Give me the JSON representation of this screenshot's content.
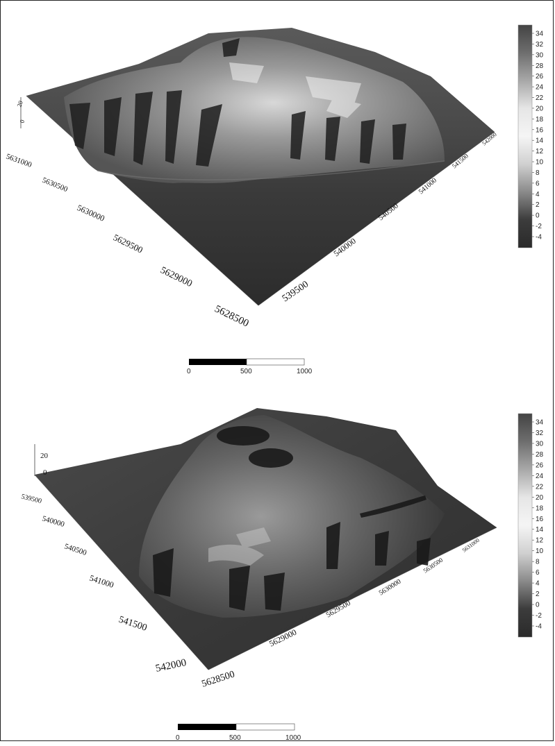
{
  "colorbar": {
    "ticks": [
      "34",
      "32",
      "30",
      "28",
      "26",
      "24",
      "22",
      "20",
      "18",
      "16",
      "14",
      "12",
      "10",
      "8",
      "6",
      "4",
      "2",
      "0",
      "-2",
      "-4"
    ],
    "gradient": [
      "#444444",
      "#6e6e6e",
      "#a8a8a8",
      "#e6e6e6",
      "#f5f5f5",
      "#d0d0d0",
      "#8a8a8a",
      "#3c3c3c",
      "#2a2a2a"
    ]
  },
  "top": {
    "z_ticks": [
      "20",
      "0"
    ],
    "left_axis": [
      "5631000",
      "5630500",
      "5630000",
      "5629500",
      "5629000",
      "5628500"
    ],
    "right_axis": [
      "539500",
      "540000",
      "540500",
      "541000",
      "541500",
      "542000"
    ],
    "scalebar": [
      "0",
      "500",
      "1000"
    ]
  },
  "bottom": {
    "z_ticks": [
      "20",
      "0"
    ],
    "left_axis": [
      "539500",
      "540000",
      "540500",
      "541000",
      "541500",
      "542000"
    ],
    "right_axis": [
      "5628500",
      "5629000",
      "5629500",
      "5630000",
      "5630500",
      "5631000"
    ],
    "scalebar": [
      "0",
      "500",
      "1000"
    ]
  }
}
